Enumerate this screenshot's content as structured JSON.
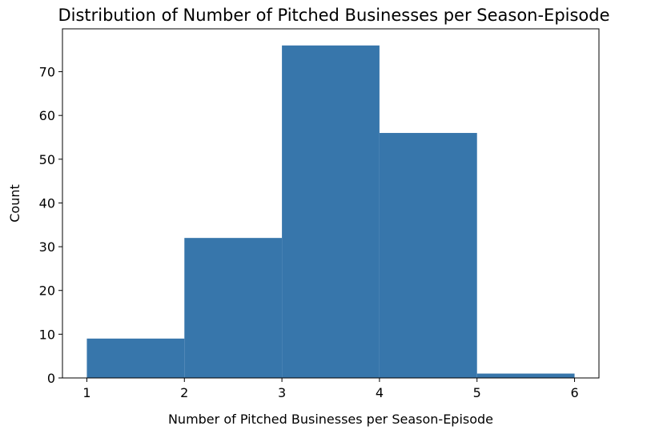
{
  "chart_data": {
    "type": "bar",
    "title": "Distribution of Number of Pitched Businesses per Season-Episode",
    "xlabel": "Number of Pitched Businesses per Season-Episode",
    "ylabel": "Count",
    "bins": [
      {
        "x0": 1,
        "x1": 2,
        "count": 9
      },
      {
        "x0": 2,
        "x1": 3,
        "count": 32
      },
      {
        "x0": 3,
        "x1": 4,
        "count": 76
      },
      {
        "x0": 4,
        "x1": 5,
        "count": 56
      },
      {
        "x0": 5,
        "x1": 6,
        "count": 1
      }
    ],
    "xticks": [
      "1",
      "2",
      "3",
      "4",
      "5",
      "6"
    ],
    "yticks": [
      "0",
      "10",
      "20",
      "30",
      "40",
      "50",
      "60",
      "70"
    ],
    "xlim": [
      0.75,
      6.25
    ],
    "ylim": [
      0,
      79.8
    ],
    "bar_color": "#3776ab",
    "grid": false,
    "legend": false
  }
}
